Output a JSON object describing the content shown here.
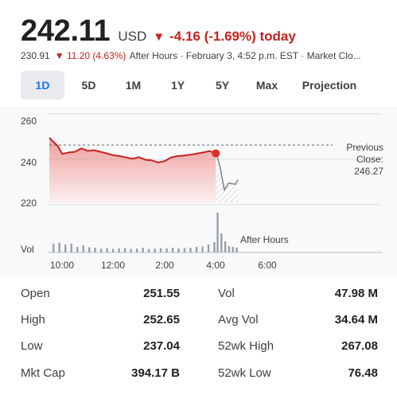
{
  "quote": {
    "price": "242.11",
    "currency": "USD",
    "change_arrow": "▼",
    "change": "-4.16 (-1.69%) today",
    "after_hours_price": "230.91",
    "after_hours_arrow": "▼",
    "after_hours_change": "11.20 (4.63%)",
    "after_hours_text": "After Hours · February 3, 4:52 p.m. EST · Market Clo...",
    "down_color": "#c5221f"
  },
  "tabs": [
    {
      "label": "1D",
      "active": true
    },
    {
      "label": "5D",
      "active": false
    },
    {
      "label": "1M",
      "active": false
    },
    {
      "label": "1Y",
      "active": false
    },
    {
      "label": "5Y",
      "active": false
    },
    {
      "label": "Max",
      "active": false
    },
    {
      "label": "Projection",
      "active": false
    }
  ],
  "chart": {
    "y_ticks": [
      "260",
      "240",
      "220"
    ],
    "x_ticks": [
      "10:00",
      "12:00",
      "2:00",
      "4:00",
      "6:00"
    ],
    "previous_close_label_1": "Previous",
    "previous_close_label_2": "Close:",
    "previous_close_value": "246.27",
    "vol_label": "Vol",
    "after_hours_label": "After Hours"
  },
  "chart_data": {
    "type": "line",
    "ylim": [
      215,
      262
    ],
    "previous_close": 246.27,
    "regular_session": {
      "x": [
        "9:30",
        "9:40",
        "9:50",
        "10:00",
        "10:15",
        "10:30",
        "10:45",
        "11:00",
        "11:15",
        "11:30",
        "11:45",
        "12:00",
        "12:15",
        "12:30",
        "12:45",
        "1:00",
        "1:15",
        "1:30",
        "1:45",
        "2:00",
        "2:15",
        "2:30",
        "2:45",
        "3:00",
        "3:15",
        "3:30",
        "3:45",
        "4:00"
      ],
      "y": [
        249.5,
        247.6,
        245.8,
        242.4,
        243.0,
        243.3,
        244.8,
        243.7,
        244.0,
        243.3,
        242.6,
        241.8,
        241.4,
        240.8,
        240.2,
        240.9,
        239.8,
        239.5,
        238.6,
        239.2,
        240.8,
        241.4,
        241.6,
        242.0,
        242.5,
        243.0,
        243.6,
        242.6
      ]
    },
    "after_hours_session": {
      "x": [
        "4:00",
        "4:05",
        "4:10",
        "4:20",
        "4:30",
        "4:45",
        "4:52"
      ],
      "y": [
        242.6,
        240.0,
        236.5,
        226.5,
        229.5,
        229.0,
        230.9
      ]
    },
    "volume": {
      "regular": [
        0.22,
        0.24,
        0.2,
        0.22,
        0.14,
        0.18,
        0.13,
        0.12,
        0.1,
        0.11,
        0.09,
        0.1,
        0.11,
        0.09,
        0.1,
        0.12,
        0.09,
        0.1,
        0.11,
        0.1,
        0.12,
        0.1,
        0.11,
        0.12,
        0.14,
        0.15,
        0.2,
        0.26
      ],
      "after_hours": [
        1.0,
        0.48,
        0.28,
        0.16,
        0.14,
        0.12
      ]
    }
  },
  "stats": {
    "left": [
      {
        "label": "Open",
        "value": "251.55"
      },
      {
        "label": "High",
        "value": "252.65"
      },
      {
        "label": "Low",
        "value": "237.04"
      },
      {
        "label": "Mkt Cap",
        "value": "394.17 B"
      }
    ],
    "right": [
      {
        "label": "Vol",
        "value": "47.98 M"
      },
      {
        "label": "Avg Vol",
        "value": "34.64 M"
      },
      {
        "label": "52wk High",
        "value": "267.08"
      },
      {
        "label": "52wk Low",
        "value": "76.48"
      }
    ]
  }
}
